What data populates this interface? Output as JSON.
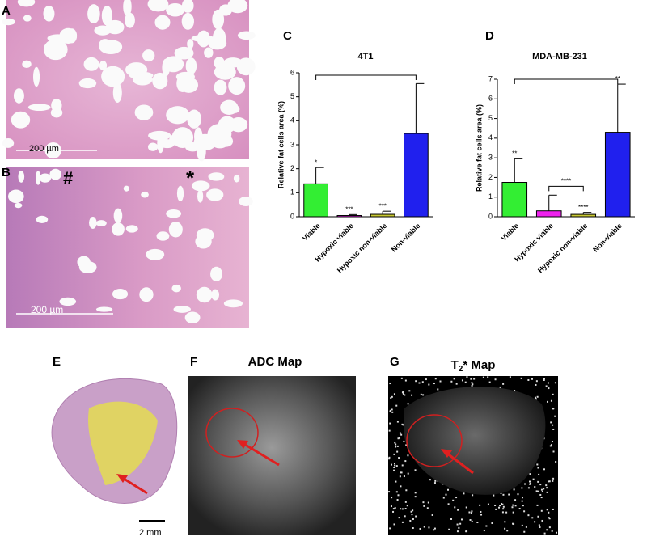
{
  "panels": [
    {
      "label": "A",
      "scale_bar": "200 µm"
    },
    {
      "label": "B",
      "scale_bar": "200 µm",
      "marks": [
        "#",
        "*"
      ]
    },
    {
      "label": "E",
      "scale_bar": "2 mm"
    },
    {
      "label": "F",
      "title": "ADC Map"
    },
    {
      "label": "G",
      "title": {
        "base": "T",
        "sub": "2",
        "rest": "* Map"
      }
    }
  ],
  "chart_data": [
    {
      "type": "bar",
      "panel": "C",
      "title": "4T1",
      "y_label": "Relative fat cells area (%)",
      "categories": [
        "Viable",
        "Hypoxic viable",
        "Hypoxic non-viable",
        "Non-viable"
      ],
      "values": [
        1.37,
        0.05,
        0.1,
        3.47
      ],
      "errors": [
        0.68,
        0.04,
        0.13,
        2.08
      ],
      "colors": [
        "#33ee33",
        "#ee22ee",
        "#c8c832",
        "#2020ee"
      ],
      "significance": [
        "*",
        "***",
        "***",
        null
      ],
      "brackets": [
        {
          "from": "Viable",
          "to": "Non-viable",
          "y": 5.9
        }
      ],
      "ylim": [
        0,
        6
      ],
      "yticks": [
        0,
        1,
        2,
        3,
        4,
        5,
        6
      ]
    },
    {
      "type": "bar",
      "panel": "D",
      "title": "MDA-MB-231",
      "y_label": "Relative fat cells area (%)",
      "categories": [
        "Viable",
        "Hypoxic viable",
        "Hypoxic non-viable",
        "Non-viable"
      ],
      "values": [
        1.75,
        0.3,
        0.12,
        4.3
      ],
      "errors": [
        1.2,
        0.8,
        0.1,
        2.45
      ],
      "colors": [
        "#33ee33",
        "#ee22ee",
        "#c8c832",
        "#2020ee"
      ],
      "significance": [
        "**",
        null,
        "****",
        "**"
      ],
      "brackets": [
        {
          "from": "Viable",
          "to": "Non-viable",
          "y": 7.0
        },
        {
          "from": "Hypoxic viable",
          "to": "Hypoxic non-viable",
          "y": 1.55,
          "text": "****"
        }
      ],
      "ylim": [
        0,
        7
      ],
      "yticks": [
        0,
        1,
        2,
        3,
        4,
        5,
        6,
        7
      ]
    }
  ]
}
